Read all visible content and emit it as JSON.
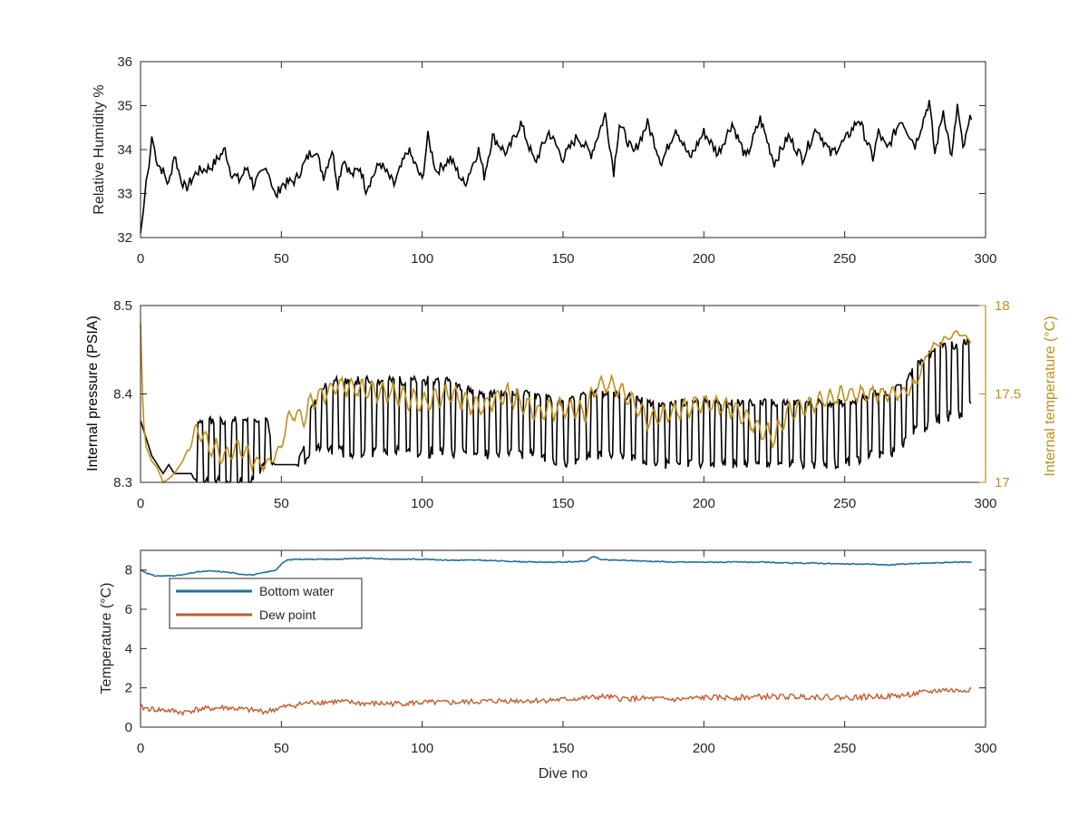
{
  "colors": {
    "humidity": "#000000",
    "pressure": "#000000",
    "internal_temp": "#c18f1a",
    "bottom_water": "#1f6fa3",
    "dew_point": "#c75a2a",
    "axis": "#262626"
  },
  "chart_data": [
    {
      "type": "line",
      "ylabel": "Relative Humidity %",
      "xlim": [
        0,
        300
      ],
      "ylim": [
        32,
        36
      ],
      "xticks": [
        0,
        50,
        100,
        150,
        200,
        250,
        300
      ],
      "yticks": [
        32,
        33,
        34,
        35,
        36
      ],
      "series": [
        {
          "x": [
            0,
            1,
            2,
            3,
            4,
            5,
            6,
            8,
            10,
            12,
            14,
            16,
            18,
            20,
            25,
            30,
            32,
            35,
            38,
            40,
            45,
            48,
            50,
            55,
            60,
            62,
            65,
            68,
            70,
            72,
            75,
            78,
            80,
            85,
            90,
            95,
            100,
            102,
            105,
            110,
            115,
            120,
            122,
            125,
            130,
            135,
            140,
            145,
            150,
            155,
            160,
            165,
            168,
            170,
            175,
            180,
            185,
            190,
            195,
            200,
            205,
            210,
            215,
            220,
            225,
            230,
            235,
            240,
            245,
            250,
            255,
            260,
            262,
            265,
            270,
            275,
            280,
            282,
            285,
            288,
            290,
            292,
            295
          ],
          "values": [
            32.1,
            32.6,
            33.3,
            33.6,
            34.3,
            34.0,
            33.7,
            33.5,
            33.2,
            33.9,
            33.4,
            33.1,
            33.3,
            33.5,
            33.6,
            34.0,
            33.5,
            33.3,
            33.6,
            33.2,
            33.6,
            32.9,
            33.2,
            33.3,
            33.9,
            34.0,
            33.4,
            34.0,
            33.2,
            33.8,
            33.4,
            33.6,
            33.1,
            33.7,
            33.2,
            34.0,
            33.3,
            34.3,
            33.5,
            33.8,
            33.2,
            34.0,
            33.4,
            34.3,
            33.9,
            34.6,
            33.7,
            34.4,
            33.8,
            34.3,
            33.9,
            34.8,
            33.5,
            34.6,
            33.9,
            34.6,
            33.7,
            34.5,
            33.8,
            34.4,
            33.9,
            34.6,
            33.8,
            34.7,
            33.7,
            34.3,
            33.8,
            34.5,
            33.9,
            34.2,
            34.7,
            33.8,
            34.4,
            34.0,
            34.7,
            34.1,
            35.1,
            33.9,
            34.9,
            33.8,
            35.0,
            34.0,
            34.8
          ]
        }
      ]
    },
    {
      "type": "line",
      "ylabel": "Internal pressure (PSIA)",
      "ylabel_right": "Internal temperature (°C)",
      "xlim": [
        0,
        300
      ],
      "ylim": [
        8.3,
        8.5
      ],
      "ylim_right": [
        17,
        18
      ],
      "xticks": [
        0,
        50,
        100,
        150,
        200,
        250,
        300
      ],
      "yticks": [
        8.3,
        8.4,
        8.5
      ],
      "yticks_right": [
        17,
        17.5,
        18
      ],
      "series": [
        {
          "axis": "left",
          "x": [
            0,
            2,
            4,
            6,
            8,
            10,
            12,
            15,
            18,
            20,
            30,
            40,
            45,
            48,
            50,
            55,
            58,
            60,
            65,
            70,
            80,
            90,
            100,
            110,
            120,
            130,
            140,
            150,
            160,
            170,
            180,
            190,
            200,
            210,
            220,
            230,
            240,
            250,
            260,
            265,
            270,
            275,
            280,
            285,
            290,
            295
          ],
          "values": [
            8.37,
            8.35,
            8.33,
            8.32,
            8.31,
            8.32,
            8.31,
            8.31,
            8.31,
            8.34,
            8.34,
            8.34,
            8.35,
            8.32,
            8.32,
            8.32,
            8.33,
            8.36,
            8.38,
            8.38,
            8.38,
            8.38,
            8.38,
            8.38,
            8.37,
            8.37,
            8.37,
            8.36,
            8.37,
            8.37,
            8.36,
            8.36,
            8.36,
            8.36,
            8.36,
            8.36,
            8.36,
            8.36,
            8.37,
            8.37,
            8.38,
            8.4,
            8.41,
            8.42,
            8.42,
            8.43
          ],
          "osc_amp": [
            0,
            0,
            0,
            0,
            0,
            0,
            0,
            0,
            0,
            0.03,
            0.03,
            0.03,
            0.02,
            0,
            0,
            0,
            0.01,
            0.02,
            0.03,
            0.035,
            0.035,
            0.035,
            0.035,
            0.035,
            0.03,
            0.03,
            0.03,
            0.03,
            0.03,
            0.03,
            0.03,
            0.03,
            0.03,
            0.03,
            0.03,
            0.03,
            0.03,
            0.03,
            0.03,
            0.03,
            0.03,
            0.03,
            0.035,
            0.035,
            0.035,
            0.03
          ]
        },
        {
          "axis": "right",
          "x": [
            0,
            1,
            2,
            4,
            6,
            8,
            10,
            12,
            15,
            20,
            25,
            30,
            35,
            40,
            45,
            50,
            52,
            55,
            58,
            60,
            65,
            70,
            80,
            90,
            100,
            110,
            120,
            130,
            140,
            150,
            158,
            162,
            168,
            172,
            180,
            190,
            200,
            210,
            220,
            225,
            230,
            240,
            250,
            260,
            265,
            270,
            275,
            280,
            285,
            290,
            295
          ],
          "values": [
            17.9,
            17.35,
            17.2,
            17.12,
            17.08,
            17.0,
            17.02,
            17.05,
            17.12,
            17.3,
            17.2,
            17.15,
            17.2,
            17.12,
            17.1,
            17.2,
            17.35,
            17.4,
            17.35,
            17.45,
            17.5,
            17.55,
            17.52,
            17.5,
            17.45,
            17.5,
            17.42,
            17.5,
            17.4,
            17.42,
            17.4,
            17.55,
            17.55,
            17.5,
            17.35,
            17.4,
            17.45,
            17.42,
            17.3,
            17.25,
            17.4,
            17.45,
            17.5,
            17.5,
            17.5,
            17.5,
            17.55,
            17.75,
            17.8,
            17.85,
            17.8
          ],
          "osc_amp": [
            0,
            0,
            0,
            0,
            0,
            0,
            0,
            0,
            0,
            0.04,
            0.05,
            0.05,
            0.05,
            0.04,
            0.03,
            0.02,
            0.03,
            0.04,
            0.04,
            0.05,
            0.05,
            0.05,
            0.05,
            0.05,
            0.05,
            0.05,
            0.05,
            0.05,
            0.05,
            0.05,
            0.05,
            0.04,
            0.04,
            0.05,
            0.05,
            0.05,
            0.05,
            0.05,
            0.05,
            0.05,
            0.05,
            0.05,
            0.04,
            0.04,
            0.03,
            0.03,
            0.03,
            0.02,
            0.02,
            0.01,
            0.01
          ]
        }
      ]
    },
    {
      "type": "line",
      "xlabel": "Dive no",
      "ylabel": "Temperature (°C)",
      "xlim": [
        0,
        300
      ],
      "ylim": [
        0,
        9
      ],
      "xticks": [
        0,
        50,
        100,
        150,
        200,
        250,
        300
      ],
      "yticks": [
        0,
        2,
        4,
        6,
        8
      ],
      "legend": "top-left",
      "series": [
        {
          "name": "Bottom water",
          "x": [
            0,
            3,
            5,
            10,
            15,
            20,
            25,
            30,
            35,
            40,
            45,
            48,
            50,
            52,
            55,
            60,
            70,
            80,
            90,
            100,
            110,
            120,
            130,
            140,
            150,
            158,
            161,
            163,
            166,
            170,
            180,
            190,
            200,
            210,
            220,
            230,
            240,
            250,
            260,
            265,
            270,
            280,
            290,
            295
          ],
          "values": [
            8.0,
            7.8,
            7.7,
            7.7,
            7.75,
            7.9,
            7.95,
            7.9,
            7.8,
            7.75,
            7.9,
            8.0,
            8.3,
            8.5,
            8.55,
            8.55,
            8.55,
            8.6,
            8.55,
            8.55,
            8.5,
            8.5,
            8.45,
            8.4,
            8.4,
            8.45,
            8.7,
            8.55,
            8.5,
            8.5,
            8.45,
            8.4,
            8.4,
            8.4,
            8.4,
            8.35,
            8.35,
            8.3,
            8.3,
            8.25,
            8.3,
            8.35,
            8.4,
            8.4
          ]
        },
        {
          "name": "Dew point",
          "x": [
            0,
            5,
            10,
            15,
            20,
            30,
            40,
            45,
            50,
            60,
            70,
            80,
            90,
            100,
            110,
            120,
            130,
            140,
            150,
            160,
            165,
            170,
            180,
            190,
            200,
            210,
            220,
            230,
            240,
            250,
            260,
            270,
            280,
            285,
            290,
            295
          ],
          "values": [
            1.0,
            0.9,
            0.85,
            0.75,
            0.9,
            1.0,
            0.85,
            0.8,
            1.0,
            1.25,
            1.3,
            1.2,
            1.2,
            1.25,
            1.25,
            1.3,
            1.35,
            1.35,
            1.4,
            1.5,
            1.55,
            1.45,
            1.45,
            1.4,
            1.5,
            1.5,
            1.55,
            1.55,
            1.55,
            1.5,
            1.55,
            1.6,
            1.8,
            1.9,
            1.85,
            1.95
          ],
          "noise": 0.14
        }
      ]
    }
  ]
}
